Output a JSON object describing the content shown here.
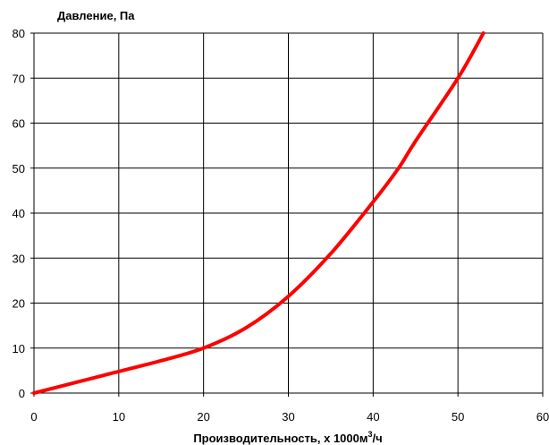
{
  "chart_data": {
    "type": "line",
    "ylabel": "Давление, Па",
    "xlabel_prefix": "Производительность, х 1000м",
    "xlabel_sup": "3",
    "xlabel_suffix": "/ч",
    "xlim": [
      0,
      60
    ],
    "ylim": [
      0,
      80
    ],
    "x_ticks": [
      0,
      10,
      20,
      30,
      40,
      50,
      60
    ],
    "y_ticks": [
      0,
      10,
      20,
      30,
      40,
      50,
      60,
      70,
      80
    ],
    "grid": true,
    "series": [
      {
        "color": "#ff0000",
        "x": [
          0,
          5,
          10,
          15,
          20,
          25,
          30,
          35,
          40,
          43,
          45,
          50,
          53
        ],
        "y": [
          0,
          2.4,
          4.8,
          7.2,
          10,
          14.5,
          21.5,
          31,
          42.5,
          50,
          56,
          70,
          80
        ]
      }
    ]
  }
}
